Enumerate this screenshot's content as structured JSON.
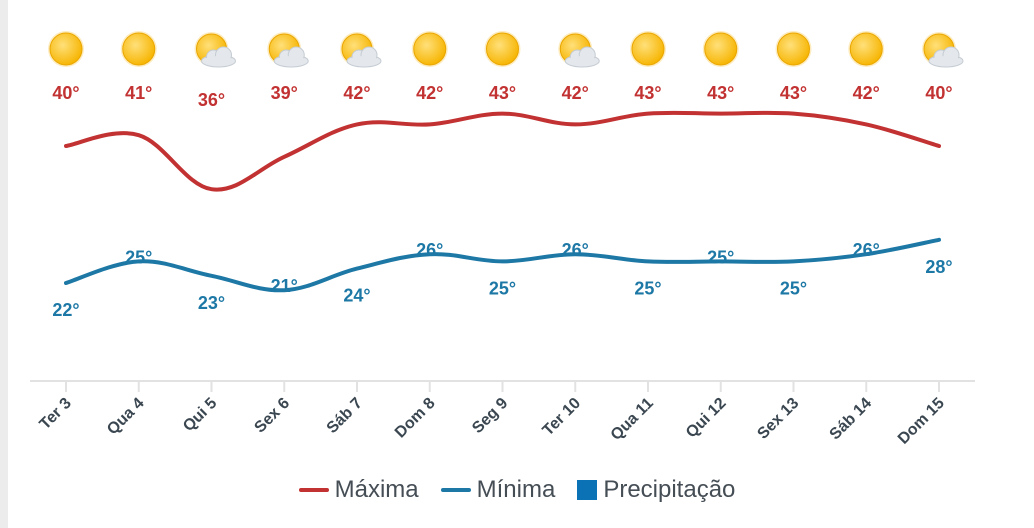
{
  "chart_data": {
    "type": "line",
    "categories": [
      "Ter 3",
      "Qua 4",
      "Qui 5",
      "Sex 6",
      "Sáb 7",
      "Dom 8",
      "Seg 9",
      "Ter 10",
      "Qua 11",
      "Qui 12",
      "Sex 13",
      "Sáb 14",
      "Dom 15"
    ],
    "series": [
      {
        "name": "Máxima",
        "values": [
          40,
          41,
          36,
          39,
          42,
          42,
          43,
          42,
          43,
          43,
          43,
          42,
          40
        ],
        "labels": [
          "40°",
          "41°",
          "36°",
          "39°",
          "42°",
          "42°",
          "43°",
          "42°",
          "43°",
          "43°",
          "43°",
          "42°",
          "40°"
        ],
        "color": "#c23232"
      },
      {
        "name": "Mínima",
        "values": [
          22,
          25,
          23,
          21,
          24,
          26,
          25,
          26,
          25,
          25,
          25,
          26,
          28
        ],
        "labels": [
          "22°",
          "25°",
          "23°",
          "21°",
          "24°",
          "26°",
          "25°",
          "26°",
          "25°",
          "25°",
          "25°",
          "26°",
          "28°"
        ],
        "color": "#1d78a6"
      }
    ],
    "weather_icons": [
      "sun-icon",
      "sun-icon",
      "sun-cloud-icon",
      "sun-cloud-icon",
      "sun-cloud-icon",
      "sun-icon",
      "sun-icon",
      "sun-cloud-icon",
      "sun-icon",
      "sun-icon",
      "sun-icon",
      "sun-icon",
      "sun-cloud-icon"
    ],
    "legend": {
      "position": "bottom",
      "items": [
        {
          "label": "Máxima",
          "color": "#c23232",
          "marker": "line"
        },
        {
          "label": "Mínima",
          "color": "#1d78a6",
          "marker": "line"
        },
        {
          "label": "Precipitação",
          "color": "#0a72b5",
          "marker": "square"
        }
      ]
    },
    "colors": {
      "sun": "#f6b400",
      "sun_highlight": "#ffe07a",
      "cloud": "#e4e8ec",
      "axis": "#e2e2e2"
    },
    "grid": false
  }
}
